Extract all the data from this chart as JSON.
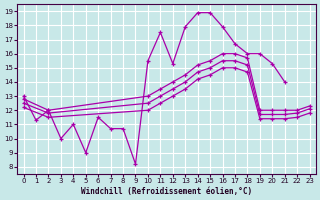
{
  "xlabel": "Windchill (Refroidissement éolien,°C)",
  "bg_color": "#c8e8e8",
  "line_color": "#aa00aa",
  "grid_color": "#ffffff",
  "xlim": [
    -0.5,
    23.5
  ],
  "ylim": [
    7.5,
    19.5
  ],
  "xticks": [
    0,
    1,
    2,
    3,
    4,
    5,
    6,
    7,
    8,
    9,
    10,
    11,
    12,
    13,
    14,
    15,
    16,
    17,
    18,
    19,
    20,
    21,
    22,
    23
  ],
  "yticks": [
    8,
    9,
    10,
    11,
    12,
    13,
    14,
    15,
    16,
    17,
    18,
    19
  ],
  "series": [
    {
      "x": [
        0,
        1,
        2,
        3,
        4,
        5,
        6,
        7,
        8,
        9,
        10,
        11,
        12,
        13,
        14,
        15,
        16,
        17,
        18,
        19,
        20,
        21
      ],
      "y": [
        13.0,
        11.3,
        12.0,
        10.0,
        11.0,
        9.0,
        11.5,
        10.7,
        10.7,
        8.2,
        15.5,
        17.5,
        15.3,
        17.9,
        18.9,
        18.9,
        17.9,
        16.7,
        16.0,
        16.0,
        15.3,
        14.0
      ]
    },
    {
      "x": [
        0,
        2,
        10,
        11,
        12,
        13,
        14,
        15,
        16,
        17,
        18,
        19,
        20,
        21,
        22,
        23
      ],
      "y": [
        12.8,
        12.0,
        13.0,
        13.5,
        14.0,
        14.5,
        15.2,
        15.5,
        16.0,
        16.0,
        15.7,
        12.0,
        12.0,
        12.0,
        12.0,
        12.3
      ]
    },
    {
      "x": [
        0,
        2,
        10,
        11,
        12,
        13,
        14,
        15,
        16,
        17,
        18,
        19,
        20,
        21,
        22,
        23
      ],
      "y": [
        12.5,
        11.8,
        12.5,
        13.0,
        13.5,
        14.0,
        14.7,
        15.0,
        15.5,
        15.5,
        15.2,
        11.7,
        11.7,
        11.7,
        11.8,
        12.1
      ]
    },
    {
      "x": [
        0,
        2,
        10,
        11,
        12,
        13,
        14,
        15,
        16,
        17,
        18,
        19,
        20,
        21,
        22,
        23
      ],
      "y": [
        12.2,
        11.5,
        12.0,
        12.5,
        13.0,
        13.5,
        14.2,
        14.5,
        15.0,
        15.0,
        14.7,
        11.4,
        11.4,
        11.4,
        11.5,
        11.8
      ]
    }
  ]
}
